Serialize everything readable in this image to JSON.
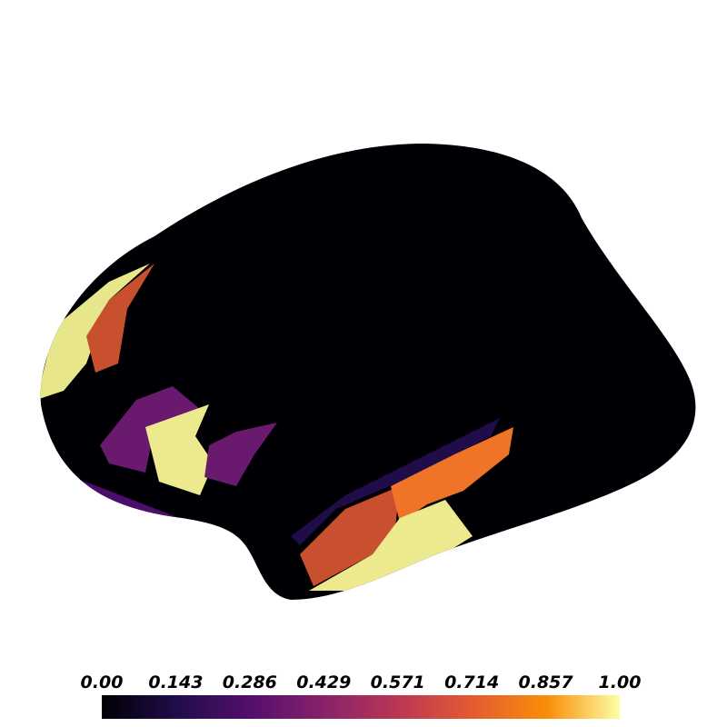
{
  "colorbar": {
    "ticks": [
      "0.00",
      "0.143",
      "0.286",
      "0.429",
      "0.571",
      "0.714",
      "0.857",
      "1.00"
    ]
  }
}
